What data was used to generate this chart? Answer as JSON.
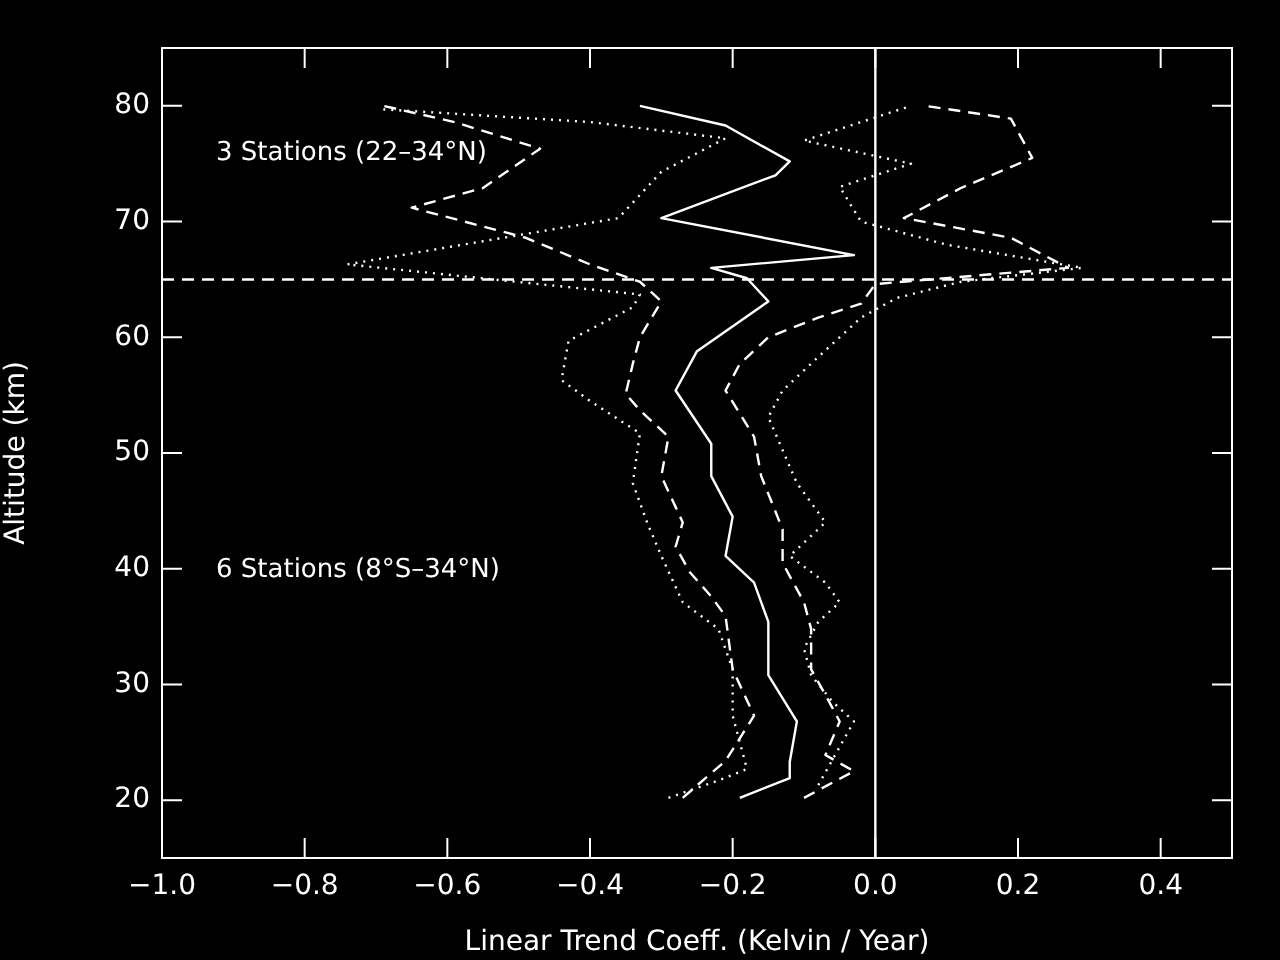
{
  "chart_data": {
    "type": "line",
    "xlabel": "Linear Trend Coeff. (Kelvin / Year)",
    "ylabel": "Altitude (km)",
    "xlim": [
      -1.0,
      0.5
    ],
    "xticks": [
      {
        "value": -1,
        "label": "−1.0"
      },
      {
        "value": -0.8,
        "label": "−0.8"
      },
      {
        "value": -0.6,
        "label": "−0.6"
      },
      {
        "value": -0.4,
        "label": "−0.4"
      },
      {
        "value": -0.2,
        "label": "−0.2"
      },
      {
        "value": 0,
        "label": "0.0"
      },
      0.2,
      0.4
    ],
    "ylim": [
      15,
      85
    ],
    "yticks": [
      20,
      30,
      40,
      50,
      60,
      70,
      80
    ],
    "grid": false,
    "legend": false,
    "marker": "none",
    "annotations": [
      "3 Stations (22–34°N)",
      "6 Stations (8°S–34°N)"
    ],
    "ref_lines": [
      {
        "axis": "y",
        "value": 65,
        "color": "#ffffff",
        "line_style": "dashed"
      },
      {
        "axis": "x",
        "value": 0,
        "color": "#ffffff",
        "line_style": "solid"
      }
    ],
    "series": [
      {
        "color": "#ffffff",
        "line_style": "solid",
        "x": [
          -0.19,
          -0.12,
          -0.12,
          -0.11,
          -0.15,
          -0.15,
          -0.17,
          -0.21,
          -0.2,
          -0.23,
          -0.23,
          -0.28,
          -0.25,
          -0.15,
          -0.18,
          -0.23,
          -0.03,
          -0.3,
          -0.14,
          -0.12,
          -0.21,
          -0.33
        ],
        "values": [
          20.2,
          21.9,
          23.3,
          26.8,
          30.8,
          35.4,
          38.8,
          41.1,
          44.5,
          48,
          50.8,
          55.4,
          58.8,
          63.1,
          65.1,
          66,
          67.1,
          70.3,
          74,
          75.2,
          78.3,
          80
        ]
      },
      {
        "color": "#ffffff",
        "line_style": "dashed",
        "x": [
          -0.27,
          -0.21,
          -0.17,
          -0.2,
          -0.21,
          -0.23,
          -0.26,
          -0.28,
          -0.27,
          -0.3,
          -0.29,
          -0.33,
          -0.35,
          -0.34,
          -0.33,
          -0.3,
          -0.33,
          -0.4,
          -0.49,
          -0.65,
          -0.55,
          -0.47,
          -0.59,
          -0.69
        ],
        "values": [
          20.2,
          23.4,
          27.3,
          31.3,
          35.9,
          37.6,
          39.7,
          41.9,
          44,
          48,
          51.4,
          53.7,
          55.1,
          57.7,
          60,
          63.1,
          64.8,
          66.3,
          68.6,
          71.2,
          72.9,
          76.3,
          78.6,
          80
        ]
      },
      {
        "color": "#ffffff",
        "line_style": "dashed",
        "x": [
          -0.1,
          -0.03,
          -0.07,
          -0.05,
          -0.07,
          -0.09,
          -0.09,
          -0.1,
          -0.13,
          -0.13,
          -0.16,
          -0.17,
          -0.21,
          -0.19,
          -0.15,
          -0.08,
          -0.02,
          0,
          0.27,
          0.19,
          0.04,
          0.12,
          0.22,
          0.19,
          0.07
        ],
        "values": [
          20.2,
          22.5,
          23.9,
          26.8,
          29.1,
          31.3,
          34.8,
          37.1,
          40.5,
          43.4,
          48,
          51.4,
          55.4,
          57.7,
          60,
          61.7,
          62.9,
          64.6,
          66,
          68.6,
          70.3,
          72.9,
          75.5,
          78.9,
          80
        ]
      },
      {
        "color": "#ffffff",
        "line_style": "dotted",
        "x": [
          -0.29,
          -0.22,
          -0.18,
          -0.2,
          -0.2,
          -0.22,
          -0.27,
          -0.3,
          -0.32,
          -0.34,
          -0.33,
          -0.4,
          -0.44,
          -0.43,
          -0.34,
          -0.33,
          -0.74,
          -0.36,
          -0.3,
          -0.21,
          -0.4,
          -0.69
        ],
        "values": [
          20.2,
          21.7,
          22.7,
          27.3,
          31.3,
          34.8,
          37.1,
          41.1,
          44,
          47.4,
          51.7,
          54.5,
          56.3,
          59.7,
          62.6,
          63.7,
          66.3,
          70.3,
          74.3,
          77.2,
          78.6,
          79.7
        ]
      },
      {
        "color": "#ffffff",
        "line_style": "dotted",
        "x": [
          -0.08,
          -0.03,
          -0.06,
          -0.09,
          -0.1,
          -0.08,
          -0.05,
          -0.07,
          -0.12,
          -0.07,
          -0.11,
          -0.15,
          -0.13,
          -0.08,
          -0.02,
          0.03,
          0.12,
          0.29,
          0.1,
          -0.02,
          -0.05,
          0.05,
          -0.1,
          0,
          0.05
        ],
        "values": [
          21.3,
          26.8,
          28.5,
          30.8,
          33.1,
          35.4,
          37.1,
          38.8,
          41.1,
          44,
          47.4,
          53.1,
          55.4,
          58.3,
          61.7,
          63.4,
          64.8,
          66,
          68,
          70,
          73,
          75,
          77,
          79,
          80
        ]
      }
    ]
  }
}
